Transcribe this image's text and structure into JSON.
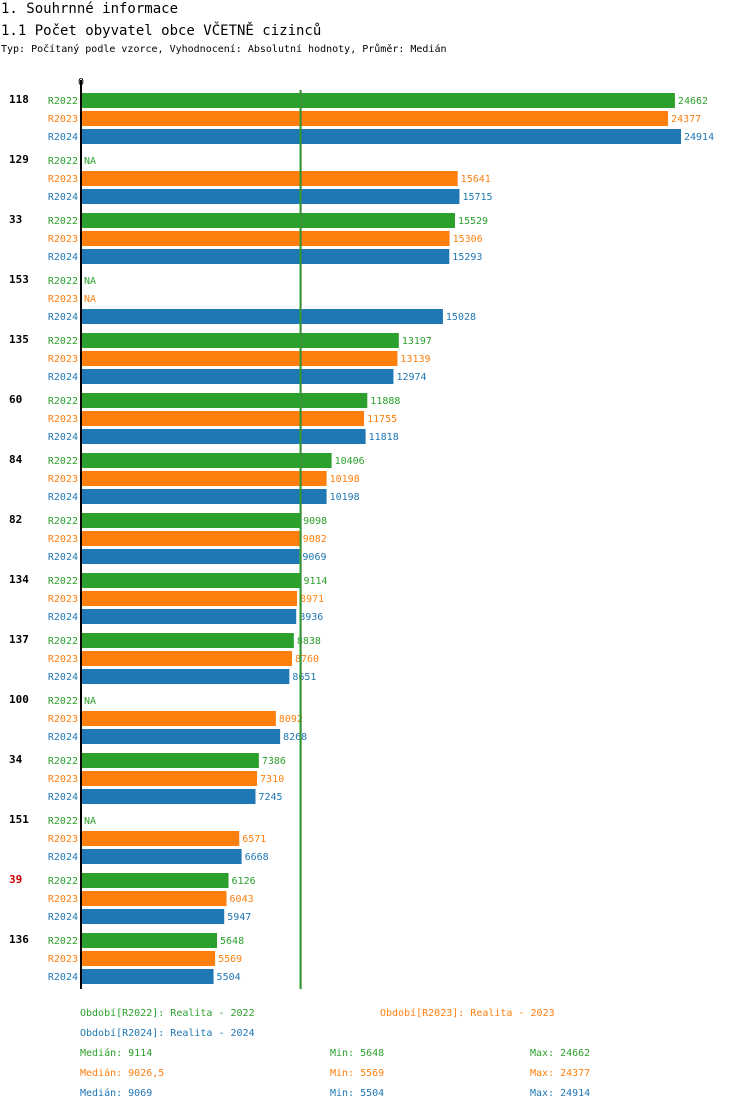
{
  "header": {
    "section_title": "1. Souhrnné informace",
    "chart_title": "1.1 Počet obyvatel obce VČETNĚ cizinců",
    "subtitle": "Typ: Počítaný podle vzorce, Vyhodnocení: Absolutní hodnoty, Průměr: Medián"
  },
  "colors": {
    "R2022": "#2ca02c",
    "R2023": "#ff7f0e",
    "R2024": "#1f77b4",
    "highlight": "#cc0000",
    "median_line": "#2ca02c"
  },
  "chart_data": {
    "type": "bar",
    "orientation": "horizontal",
    "title": "1.1 Počet obyvatel obce VČETNĚ cizinců",
    "x_axis_zero_label": "0",
    "xlim": [
      0,
      24914
    ],
    "na_label": "NA",
    "series_names": [
      "R2022",
      "R2023",
      "R2024"
    ],
    "median_line_value": 9114,
    "highlight_category": "39",
    "categories": [
      {
        "id": "118",
        "values": [
          24662,
          24377,
          24914
        ]
      },
      {
        "id": "129",
        "values": [
          null,
          15641,
          15715
        ]
      },
      {
        "id": "33",
        "values": [
          15529,
          15306,
          15293
        ]
      },
      {
        "id": "153",
        "values": [
          null,
          null,
          15028
        ]
      },
      {
        "id": "135",
        "values": [
          13197,
          13139,
          12974
        ]
      },
      {
        "id": "60",
        "values": [
          11888,
          11755,
          11818
        ]
      },
      {
        "id": "84",
        "values": [
          10406,
          10198,
          10198
        ]
      },
      {
        "id": "82",
        "values": [
          9098,
          9082,
          9069
        ]
      },
      {
        "id": "134",
        "values": [
          9114,
          8971,
          8936
        ]
      },
      {
        "id": "137",
        "values": [
          8838,
          8760,
          8651
        ]
      },
      {
        "id": "100",
        "values": [
          null,
          8092,
          8268
        ]
      },
      {
        "id": "34",
        "values": [
          7386,
          7310,
          7245
        ]
      },
      {
        "id": "151",
        "values": [
          null,
          6571,
          6668
        ]
      },
      {
        "id": "39",
        "values": [
          6126,
          6043,
          5947
        ]
      },
      {
        "id": "136",
        "values": [
          5648,
          5569,
          5504
        ]
      }
    ]
  },
  "legend": {
    "period_r2022": "Období[R2022]: Realita - 2022",
    "period_r2023": "Období[R2023]: Realita - 2023",
    "period_r2024": "Období[R2024]: Realita - 2024",
    "stats": [
      {
        "median": "Medián: 9114",
        "min": "Min: 5648",
        "max": "Max: 24662"
      },
      {
        "median": "Medián: 9026,5",
        "min": "Min: 5569",
        "max": "Max: 24377"
      },
      {
        "median": "Medián: 9069",
        "min": "Min: 5504",
        "max": "Max: 24914"
      }
    ]
  }
}
